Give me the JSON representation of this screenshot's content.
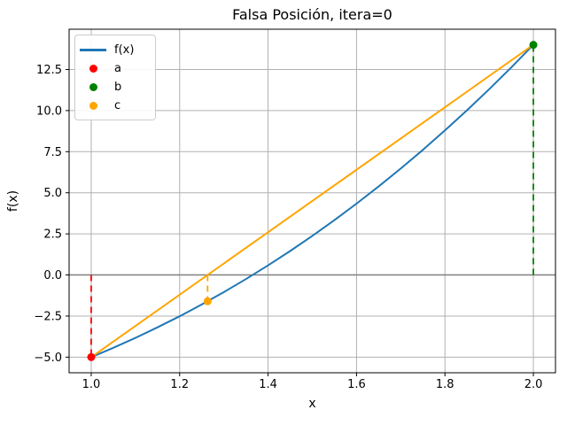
{
  "chart_data": {
    "type": "line",
    "title": "Falsa Posición, itera=0",
    "xlabel": "x",
    "ylabel": "f(x)",
    "xlim": [
      0.95,
      2.05
    ],
    "ylim": [
      -5.95,
      14.95
    ],
    "xticks": [
      1.0,
      1.2,
      1.4,
      1.6,
      1.8,
      2.0
    ],
    "yticks": [
      -5.0,
      -2.5,
      0.0,
      2.5,
      5.0,
      7.5,
      10.0,
      12.5
    ],
    "grid": {
      "on": true,
      "style": "solid",
      "color": "#b0b0b0"
    },
    "zero_line": {
      "y": 0.0,
      "color": "#808080"
    },
    "series": [
      {
        "name": "f(x)",
        "kind": "curve",
        "color": "#1f77b4",
        "x": [
          1.0,
          1.05,
          1.1,
          1.15,
          1.2,
          1.25,
          1.3,
          1.35,
          1.4,
          1.45,
          1.5,
          1.55,
          1.6,
          1.65,
          1.7,
          1.75,
          1.8,
          1.85,
          1.9,
          1.95,
          2.0
        ],
        "y": [
          -5.0,
          -4.432,
          -3.829,
          -3.189,
          -2.512,
          -1.797,
          -1.043,
          -0.25,
          0.584,
          1.459,
          2.375,
          3.334,
          4.336,
          5.382,
          6.473,
          7.609,
          8.792,
          10.022,
          11.299,
          12.625,
          14.0
        ]
      },
      {
        "name": "secant",
        "kind": "line",
        "color": "#ffa500",
        "x": [
          1.0,
          2.0
        ],
        "y": [
          -5.0,
          14.0
        ]
      }
    ],
    "points": [
      {
        "name": "a",
        "x": 1.0,
        "y": -5.0,
        "color": "#ff0000",
        "stem_to_zero": true
      },
      {
        "name": "b",
        "x": 2.0,
        "y": 14.0,
        "color": "#008000",
        "stem_to_zero": true
      },
      {
        "name": "c",
        "x": 1.2632,
        "y": -1.602,
        "color": "#ffa500",
        "stem_to_zero": true
      }
    ],
    "legend": {
      "position": "upper left",
      "entries": [
        {
          "label": "f(x)",
          "marker": "line",
          "color": "#1f77b4"
        },
        {
          "label": "a",
          "marker": "dot",
          "color": "#ff0000"
        },
        {
          "label": "b",
          "marker": "dot",
          "color": "#008000"
        },
        {
          "label": "c",
          "marker": "dot",
          "color": "#ffa500"
        }
      ]
    }
  }
}
